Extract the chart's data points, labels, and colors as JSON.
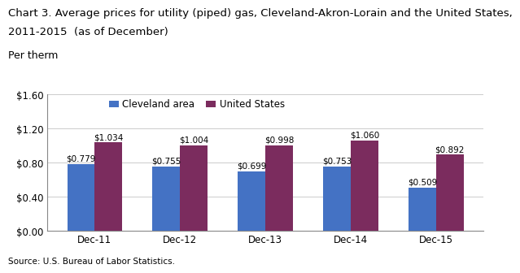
{
  "title_line1": "Chart 3. Average prices for utility (piped) gas, Cleveland-Akron-Lorain and the United States,",
  "title_line2": "2011-2015  (as of December)",
  "ylabel": "Per therm",
  "source": "Source: U.S. Bureau of Labor Statistics.",
  "categories": [
    "Dec-11",
    "Dec-12",
    "Dec-13",
    "Dec-14",
    "Dec-15"
  ],
  "cleveland_values": [
    0.779,
    0.755,
    0.699,
    0.753,
    0.509
  ],
  "us_values": [
    1.034,
    1.004,
    0.998,
    1.06,
    0.892
  ],
  "cleveland_color": "#4472C4",
  "us_color": "#7B2C5E",
  "legend_labels": [
    "Cleveland area",
    "United States"
  ],
  "ylim": [
    0,
    1.6
  ],
  "yticks": [
    0.0,
    0.4,
    0.8,
    1.2,
    1.6
  ],
  "bar_width": 0.32,
  "title_fontsize": 9.5,
  "ylabel_fontsize": 9,
  "tick_fontsize": 8.5,
  "annotation_fontsize": 7.5,
  "legend_fontsize": 8.5,
  "source_fontsize": 7.5
}
